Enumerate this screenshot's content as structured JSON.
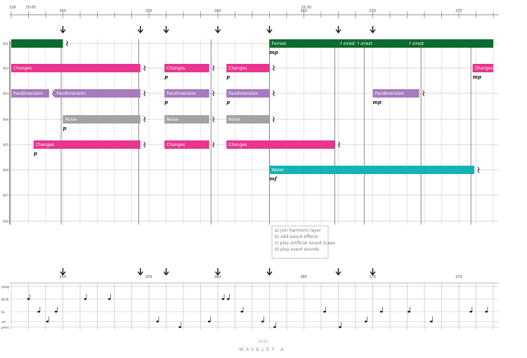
{
  "colors": {
    "forrest": "#0c6b2e",
    "changes": "#e8358f",
    "pandimension": "#a67bbf",
    "noise": "#a3a3a3",
    "water": "#13b3b6",
    "line": "#555555"
  },
  "top": {
    "start_label": "226",
    "time_labels": [
      {
        "text": "15:00",
        "bar": 1
      },
      {
        "text": "15:30",
        "bar": 17
      }
    ],
    "numbers": [
      {
        "text": "250",
        "bar": 3
      },
      {
        "text": "255",
        "bar": 8
      },
      {
        "text": "260",
        "bar": 12
      },
      {
        "text": "265",
        "bar": 17
      },
      {
        "text": "270",
        "bar": 21
      },
      {
        "text": "275",
        "bar": 26
      }
    ]
  },
  "staff_labels": [
    "W1",
    "W2",
    "W3",
    "W4",
    "W5",
    "W6",
    "W7",
    "W8"
  ],
  "blocks": [
    {
      "row": 0,
      "label": "",
      "color": "forrest",
      "b0": 0,
      "b1": 3
    },
    {
      "row": 0,
      "label": "Forrest",
      "color": "forrest",
      "b0": 15,
      "b1": 19
    },
    {
      "row": 0,
      "label": "Forrest",
      "color": "forrest",
      "b0": 19,
      "b1": 20
    },
    {
      "row": 0,
      "label": "Forrest",
      "color": "forrest",
      "b0": 20,
      "b1": 23
    },
    {
      "row": 0,
      "label": "Forrest",
      "color": "forrest",
      "b0": 23,
      "b1": 28
    },
    {
      "row": 1,
      "label": "Changes",
      "color": "changes",
      "b0": 0,
      "b1": 7.5
    },
    {
      "row": 1,
      "label": "Changes",
      "color": "changes",
      "b0": 8.9,
      "b1": 11.5
    },
    {
      "row": 1,
      "label": "Changes",
      "color": "changes",
      "b0": 12.5,
      "b1": 15
    },
    {
      "row": 1,
      "label": "Changes",
      "color": "changes",
      "b0": 26.8,
      "b1": 28
    },
    {
      "row": 2,
      "label": "Pandimension",
      "color": "pandimension",
      "b0": 0,
      "b1": 2.2
    },
    {
      "row": 2,
      "label": "Pandimension",
      "color": "pandimension",
      "b0": 2.5,
      "b1": 7.5
    },
    {
      "row": 2,
      "label": "Pandimension",
      "color": "pandimension",
      "b0": 8.9,
      "b1": 11.5
    },
    {
      "row": 2,
      "label": "Pandimension",
      "color": "pandimension",
      "b0": 12.5,
      "b1": 15
    },
    {
      "row": 2,
      "label": "Pandimension",
      "color": "pandimension",
      "b0": 21,
      "b1": 23.7
    },
    {
      "row": 3,
      "label": "Noise",
      "color": "noise",
      "b0": 3,
      "b1": 7.5
    },
    {
      "row": 3,
      "label": "Noise",
      "color": "noise",
      "b0": 8.9,
      "b1": 11.5
    },
    {
      "row": 3,
      "label": "Noise",
      "color": "noise",
      "b0": 12.5,
      "b1": 15
    },
    {
      "row": 4,
      "label": "Changes",
      "color": "changes",
      "b0": 1.3,
      "b1": 7.5
    },
    {
      "row": 4,
      "label": "Changes",
      "color": "changes",
      "b0": 8.9,
      "b1": 11.5
    },
    {
      "row": 4,
      "label": "Changes",
      "color": "changes",
      "b0": 12.5,
      "b1": 18.8
    },
    {
      "row": 5,
      "label": "Water",
      "color": "water",
      "b0": 15,
      "b1": 26.9
    }
  ],
  "dynamics": [
    {
      "text": "mp",
      "row": 0,
      "bar": 15
    },
    {
      "text": "p",
      "row": 1,
      "bar": 8.9
    },
    {
      "text": "p",
      "row": 1,
      "bar": 12.5
    },
    {
      "text": "mp",
      "row": 1,
      "bar": 26.8
    },
    {
      "text": "p",
      "row": 2,
      "bar": 8.9
    },
    {
      "text": "p",
      "row": 2,
      "bar": 12.5
    },
    {
      "text": "mp",
      "row": 2,
      "bar": 21
    },
    {
      "text": "p",
      "row": 3,
      "bar": 3
    },
    {
      "text": "p",
      "row": 4,
      "bar": 1.3
    },
    {
      "text": "mf",
      "row": 5,
      "bar": 15
    }
  ],
  "arrows_bars": [
    3,
    7.5,
    9,
    12,
    15,
    19,
    21
  ],
  "legend": [
    "a) join harmonic layer",
    "b) add sound effects",
    "c) play artificial sound scape",
    "d) play event sounds"
  ],
  "bottom": {
    "numbers": [
      {
        "text": "250",
        "bar": 3
      },
      {
        "text": "255",
        "bar": 8
      },
      {
        "text": "260",
        "bar": 12
      },
      {
        "text": "265",
        "bar": 17
      },
      {
        "text": "270",
        "bar": 21
      },
      {
        "text": "275",
        "bar": 26
      }
    ],
    "staff_labels": [
      "ping",
      "kick",
      "hi",
      "wt",
      "perc"
    ]
  },
  "footer": {
    "page": "11/12",
    "title": "WAVELET A"
  }
}
